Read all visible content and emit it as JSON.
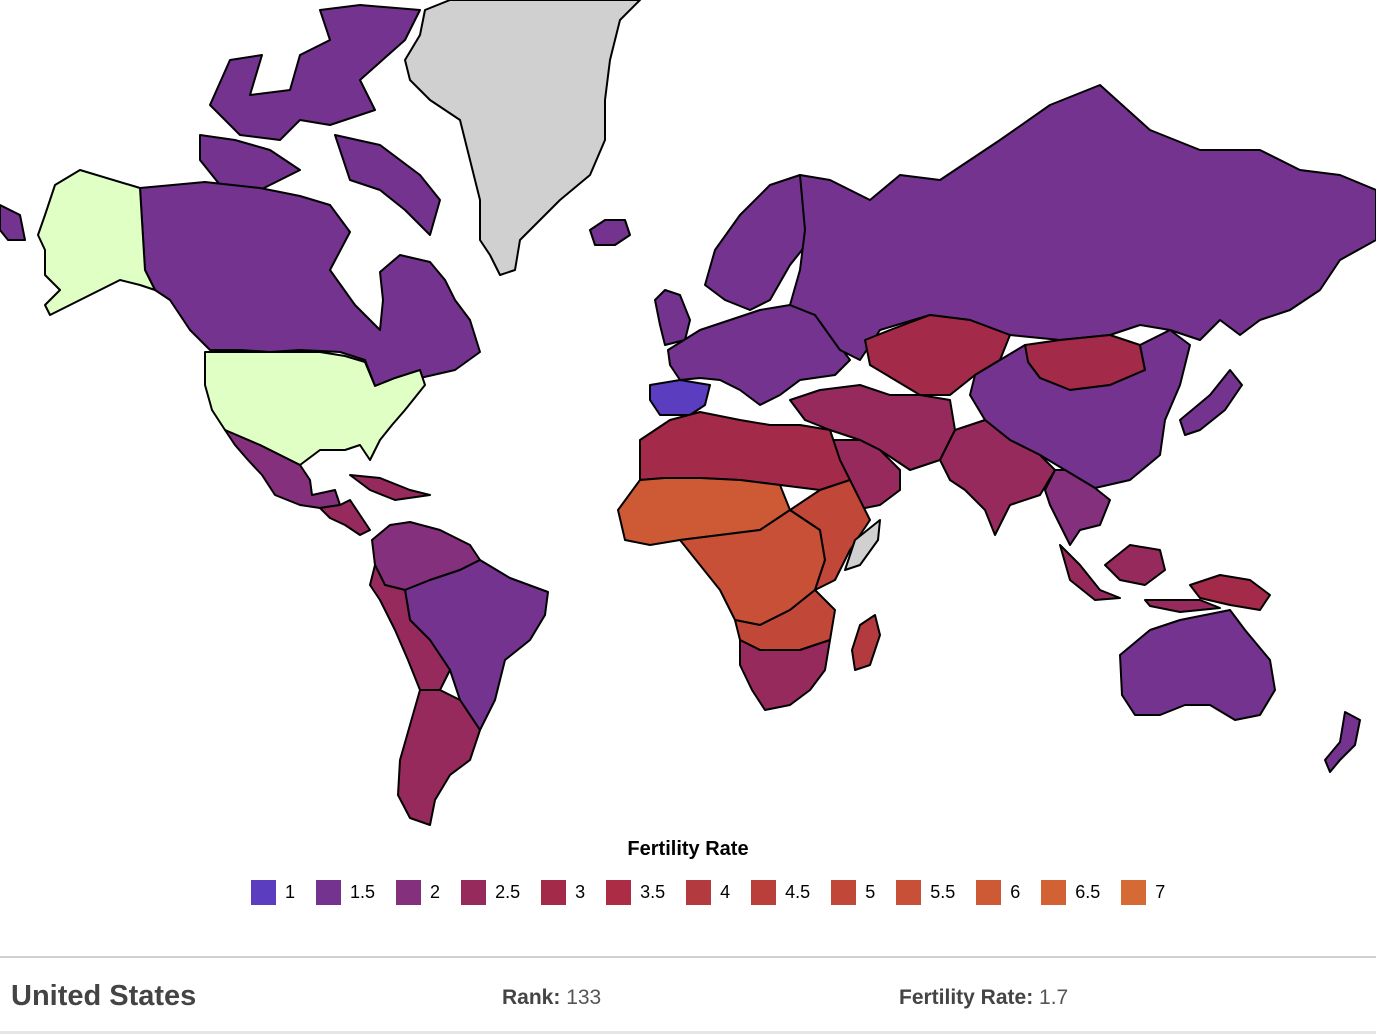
{
  "legend": {
    "title": "Fertility Rate",
    "items": [
      {
        "label": "1",
        "color": "#5b3ec0"
      },
      {
        "label": "1.5",
        "color": "#73338e"
      },
      {
        "label": "2",
        "color": "#85307d"
      },
      {
        "label": "2.5",
        "color": "#972a5c"
      },
      {
        "label": "3",
        "color": "#a32a48"
      },
      {
        "label": "3.5",
        "color": "#ab2c44"
      },
      {
        "label": "4",
        "color": "#b33a3e"
      },
      {
        "label": "4.5",
        "color": "#ba3f3b"
      },
      {
        "label": "5",
        "color": "#c14738"
      },
      {
        "label": "5.5",
        "color": "#c85036"
      },
      {
        "label": "6",
        "color": "#cd5a35"
      },
      {
        "label": "6.5",
        "color": "#d26234"
      },
      {
        "label": "7",
        "color": "#d66a34"
      }
    ]
  },
  "map_colors": {
    "selected": "#dfffc4",
    "no_data": "#d0d0d0",
    "ocean": "#ffffff"
  },
  "map_regions": [
    {
      "name": "alaska",
      "color": "#dfffc4"
    },
    {
      "name": "usa",
      "color": "#dfffc4"
    },
    {
      "name": "canada",
      "color": "#73338e"
    },
    {
      "name": "arctic-islands",
      "color": "#73338e"
    },
    {
      "name": "greenland",
      "color": "#d0d0d0"
    },
    {
      "name": "iceland",
      "color": "#73338e"
    },
    {
      "name": "mexico",
      "color": "#85307d"
    },
    {
      "name": "central-america",
      "color": "#972a5c"
    },
    {
      "name": "colombia-venezuela",
      "color": "#85307d"
    },
    {
      "name": "brazil",
      "color": "#73338e"
    },
    {
      "name": "andes",
      "color": "#972a5c"
    },
    {
      "name": "argentina",
      "color": "#972a5c"
    },
    {
      "name": "scandinavia",
      "color": "#73338e"
    },
    {
      "name": "uk",
      "color": "#73338e"
    },
    {
      "name": "iberia",
      "color": "#5b3ec0"
    },
    {
      "name": "europe",
      "color": "#73338e"
    },
    {
      "name": "russia",
      "color": "#73338e"
    },
    {
      "name": "kazakhstan",
      "color": "#a32a48"
    },
    {
      "name": "mongolia",
      "color": "#a32a48"
    },
    {
      "name": "china",
      "color": "#73338e"
    },
    {
      "name": "middle-east",
      "color": "#972a5c"
    },
    {
      "name": "arabia",
      "color": "#972a5c"
    },
    {
      "name": "north-africa",
      "color": "#a32a48"
    },
    {
      "name": "sahel",
      "color": "#cd5a35"
    },
    {
      "name": "central-africa",
      "color": "#c85036"
    },
    {
      "name": "east-africa",
      "color": "#c14738"
    },
    {
      "name": "southern-africa",
      "color": "#972a5c"
    },
    {
      "name": "somalia",
      "color": "#d0d0d0"
    },
    {
      "name": "madagascar",
      "color": "#b33a3e"
    },
    {
      "name": "south-asia",
      "color": "#972a5c"
    },
    {
      "name": "southeast-asia",
      "color": "#85307d"
    },
    {
      "name": "japan",
      "color": "#73338e"
    },
    {
      "name": "indonesia",
      "color": "#972a5c"
    },
    {
      "name": "papua",
      "color": "#a32a48"
    },
    {
      "name": "australia",
      "color": "#73338e"
    },
    {
      "name": "new-zealand",
      "color": "#73338e"
    }
  ],
  "info": {
    "country": "United States",
    "rank_label": "Rank:",
    "rank_value": "133",
    "fertility_label": "Fertility Rate:",
    "fertility_value": "1.7"
  }
}
